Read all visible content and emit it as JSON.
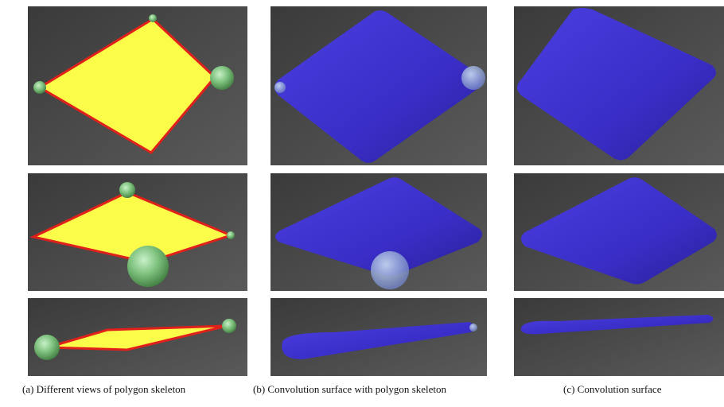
{
  "captions": [
    "(a) Different views of polygon skeleton",
    "(b) Convolution surface with  polygon skeleton",
    "(c) Convolution surface"
  ]
}
